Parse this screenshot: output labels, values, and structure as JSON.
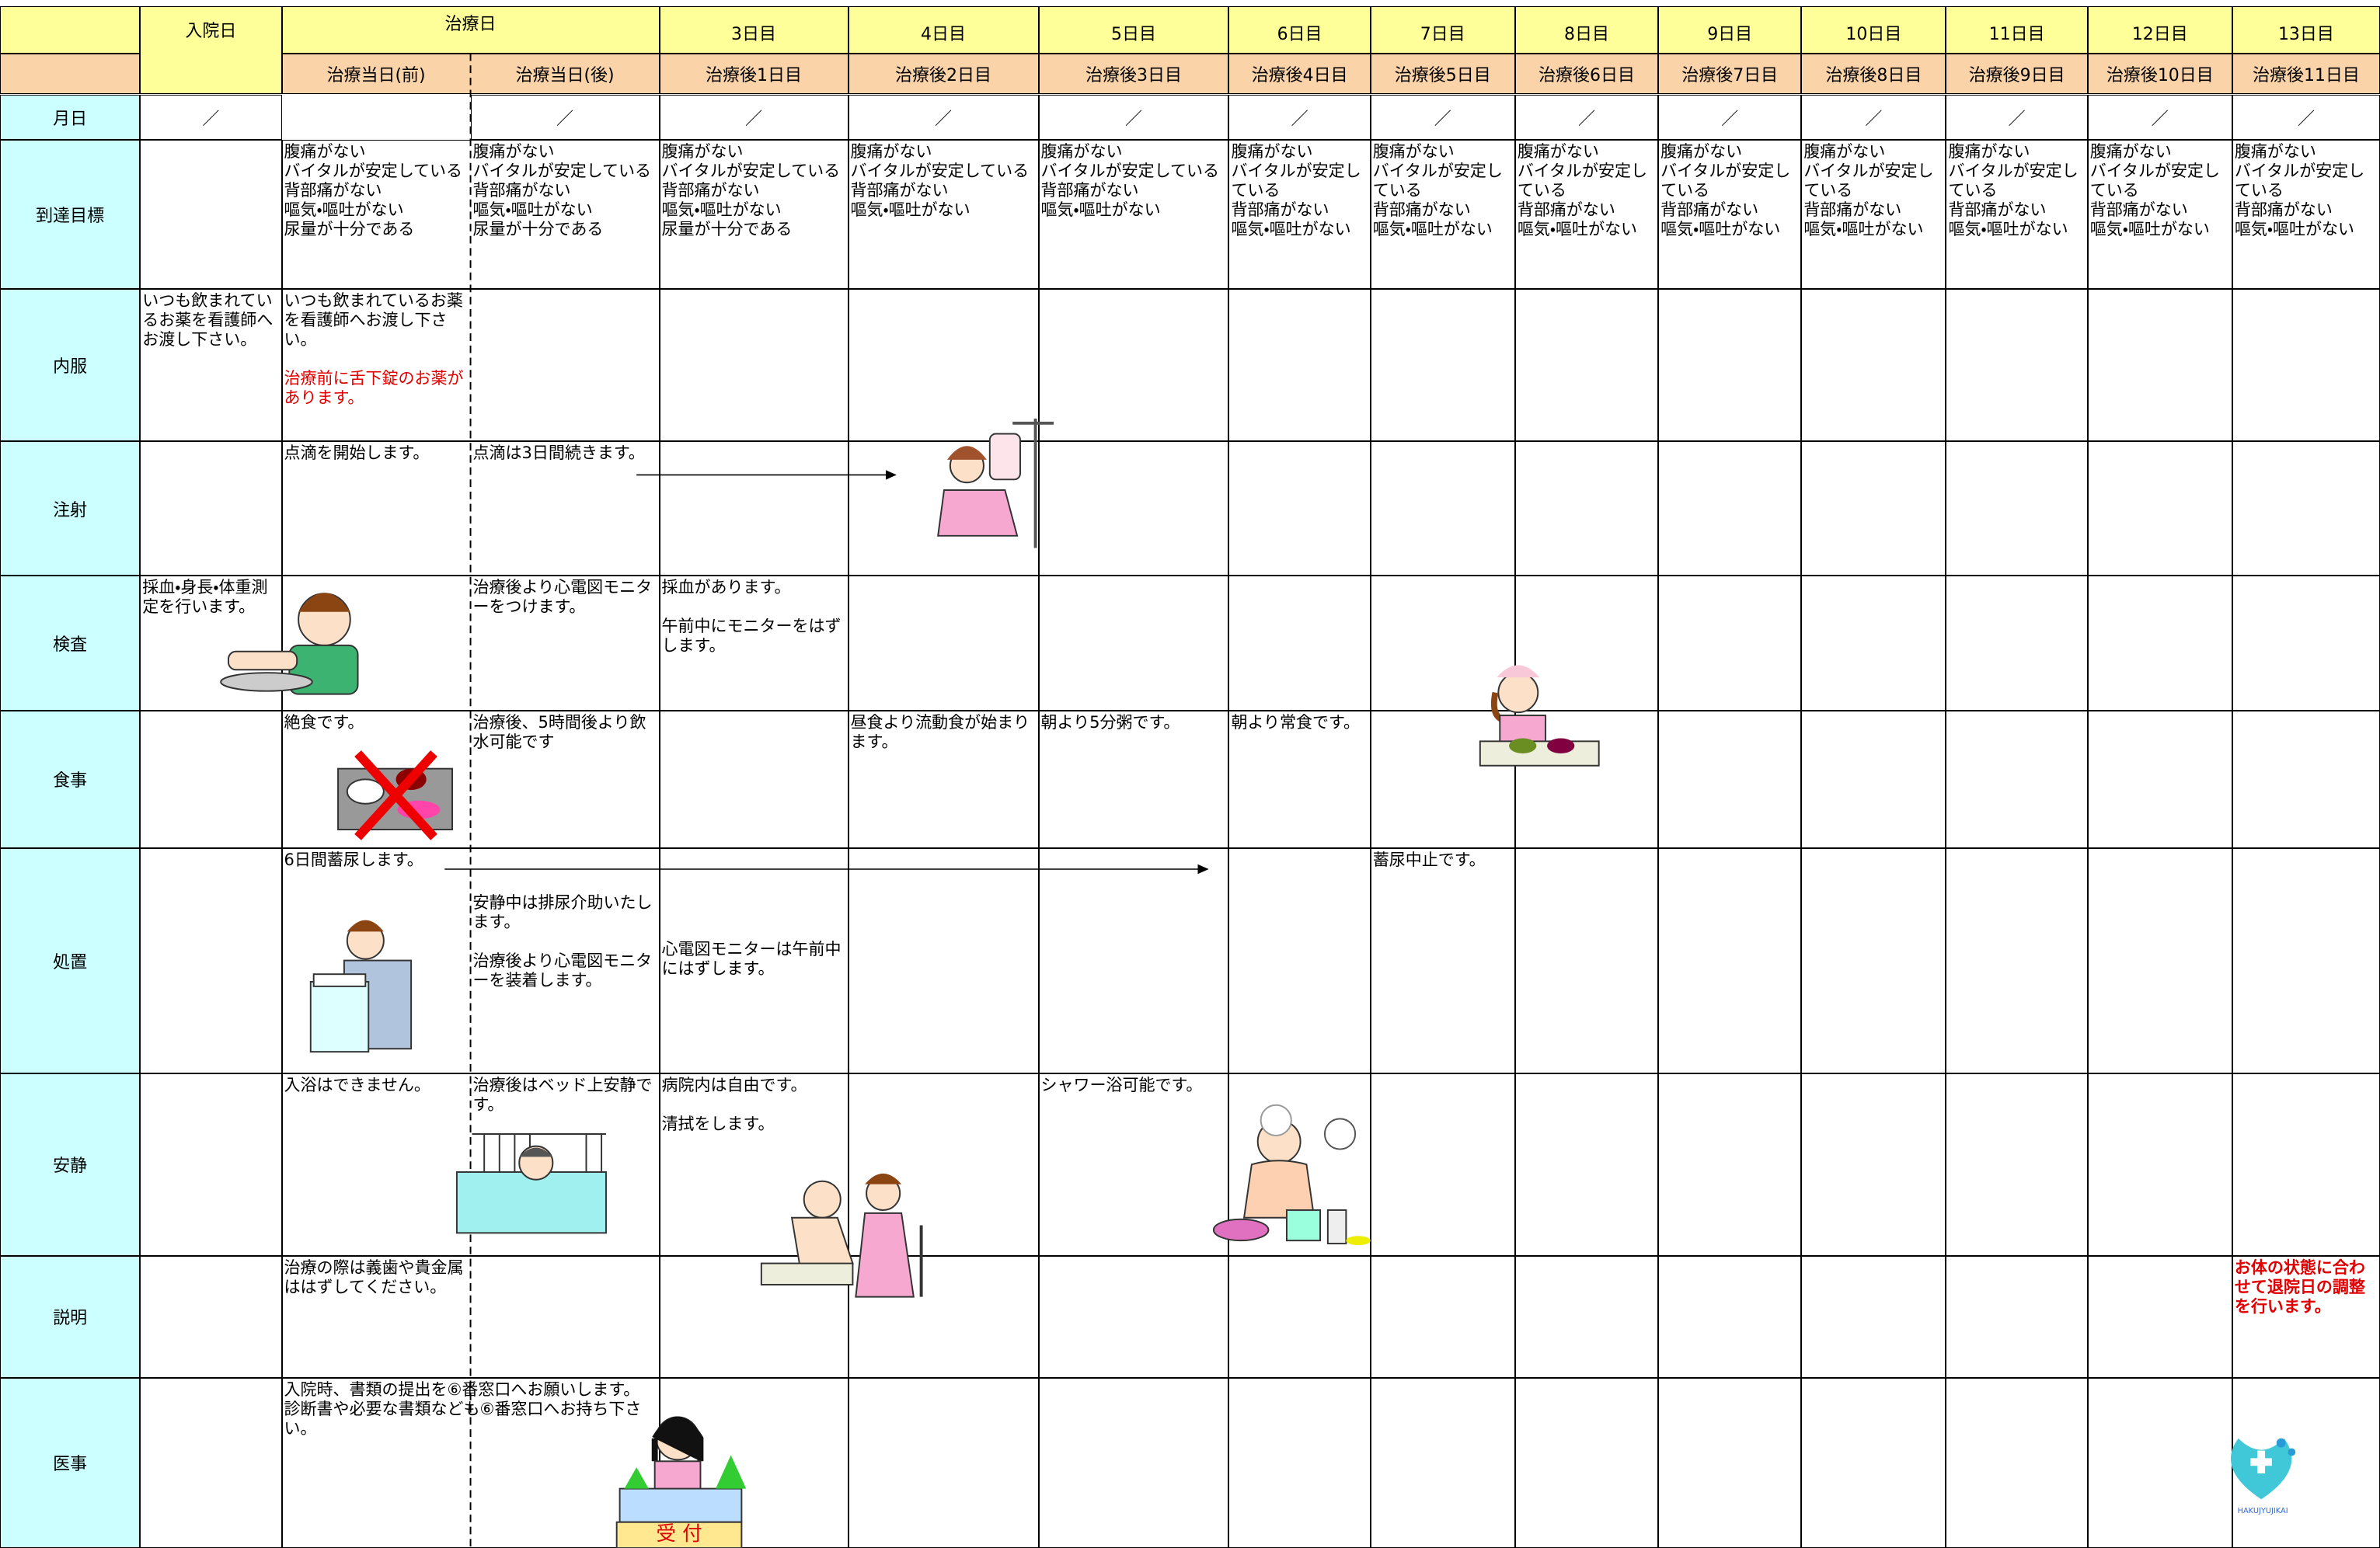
{
  "header": {
    "admission": "入院日",
    "treatment_day": "治療日",
    "days": [
      "3日目",
      "4日目",
      "5日目",
      "6日目",
      "7日目",
      "8日目",
      "9日目",
      "10日目",
      "11日目",
      "12日目",
      "13日目"
    ],
    "subheaders": [
      "治療当日(前)",
      "治療当日(後)",
      "治療後1日目",
      "治療後2日目",
      "治療後3日目",
      "治療後4日目",
      "治療後5日目",
      "治療後6日目",
      "治療後7日目",
      "治療後8日目",
      "治療後9日目",
      "治療後10日目",
      "治療後11日目"
    ]
  },
  "date_row": {
    "label": "月日",
    "marks": [
      "／",
      "／",
      "／",
      "／",
      "／",
      "／",
      "／",
      "／",
      "／",
      "／",
      "／",
      "／",
      "／"
    ]
  },
  "rows": [
    {
      "label": "到達目標",
      "cells": [
        null,
        "腹痛がない\nバイタルが安定している\n背部痛がない\n嘔気・嘔吐がない\n尿量が十分である",
        "腹痛がない\nバイタルが安定している\n背部痛がない\n嘔気・嘔吐がない\n尿量が十分である",
        "腹痛がない\nバイタルが安定している\n背部痛がない\n嘔気・嘔吐がない\n尿量が十分である",
        "腹痛がない\nバイタルが安定している\n背部痛がない\n嘔気・嘔吐がない",
        "腹痛がない\nバイタルが安定している\n背部痛がない\n嘔気・嘔吐がない",
        "腹痛がない\nバイタルが安定している\n背部痛がない\n嘔気・嘔吐がない",
        "腹痛がない\nバイタルが安定している\n背部痛がない\n嘔気・嘔吐がない",
        "腹痛がない\nバイタルが安定している\n背部痛がない\n嘔気・嘔吐がない",
        "腹痛がない\nバイタルが安定している\n背部痛がない\n嘔気・嘔吐がない",
        "腹痛がない\nバイタルが安定している\n背部痛がない\n嘔気・嘔吐がない",
        "腹痛がない\nバイタルが安定している\n背部痛がない\n嘔気・嘔吐がない",
        "腹痛がない\nバイタルが安定している\n背部痛がない\n嘔気・嘔吐がない",
        "腹痛がない\nバイタルが安定している\n背部痛がない\n嘔気・嘔吐がない"
      ]
    },
    {
      "label": "内服",
      "cells": [
        "いつも飲まれているお薬を看護師へお渡し下さい。",
        {
          "text": "いつも飲まれているお薬を看護師へお渡し下さい。",
          "note": "治療前に舌下錠のお薬があります。"
        },
        null,
        null,
        null,
        null,
        null,
        null,
        null,
        null,
        null,
        null,
        null,
        null
      ]
    },
    {
      "label": "注射",
      "cells": [
        null,
        "点滴を開始します。",
        "点滴は3日間続きます。",
        null,
        null,
        null,
        null,
        null,
        null,
        null,
        null,
        null,
        null,
        null
      ]
    },
    {
      "label": "検査",
      "cells": [
        "採血・身長・体重測定を行います。",
        null,
        "治療後より心電図モニターをつけます。",
        "採血があります。\n\n午前中にモニターをはずします。",
        null,
        null,
        null,
        null,
        null,
        null,
        null,
        null,
        null,
        null
      ]
    },
    {
      "label": "食事",
      "cells": [
        null,
        "絶食です。",
        "治療後、5時間後より飲水可能です",
        null,
        "昼食より流動食が始まります。",
        "朝より5分粥です。",
        "朝より常食です。",
        null,
        null,
        null,
        null,
        null,
        null,
        null
      ]
    },
    {
      "label": "処置",
      "cells": [
        null,
        "6日間蓄尿します。",
        "安静中は排尿介助いたします。\n\n治療後より心電図モニターを装着します。",
        "心電図モニターは午前中にはずします。",
        null,
        null,
        null,
        "蓄尿中止です。",
        null,
        null,
        null,
        null,
        null,
        null
      ]
    },
    {
      "label": "安静",
      "cells": [
        null,
        "入浴はできません。",
        "治療後はベッド上安静です。",
        "病院内は自由です。\n\n清拭をします。",
        null,
        "シャワー浴可能です。",
        null,
        null,
        null,
        null,
        null,
        null,
        null,
        null
      ]
    },
    {
      "label": "説明",
      "cells": [
        null,
        "治療の際は義歯や貴金属ははずしてください。",
        null,
        null,
        null,
        null,
        null,
        null,
        null,
        null,
        null,
        null,
        null,
        {
          "alert": "お体の状態に合わせて退院日の調整を行います。"
        }
      ]
    },
    {
      "label": "医事",
      "cells": [
        null,
        "入院時、書類の提出を⑥番窓口へお願いします。\n診断書や必要な書類なども⑥番窓口へお持ち下さい。",
        null,
        null,
        null,
        null,
        null,
        null,
        null,
        null,
        null,
        null,
        null,
        null
      ]
    }
  ],
  "reception_sign": "受 付",
  "logo": "HAKUJYUJIKAI"
}
